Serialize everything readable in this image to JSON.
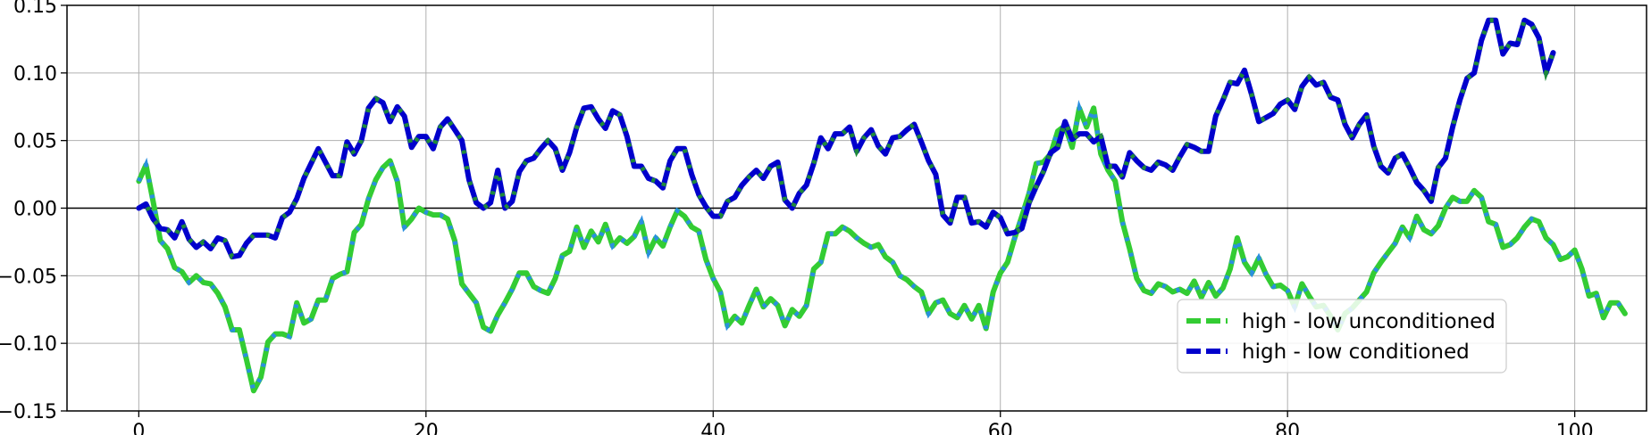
{
  "chart_data": {
    "type": "line",
    "title": "",
    "xlabel": "",
    "ylabel": "",
    "xlim": [
      -5,
      105
    ],
    "ylim": [
      -0.15,
      0.15
    ],
    "xticks": [
      0,
      20,
      40,
      60,
      80,
      100
    ],
    "yticks": [
      -0.15,
      -0.1,
      -0.05,
      0.0,
      0.05,
      0.1,
      0.15
    ],
    "xtick_labels": [
      "0",
      "20",
      "40",
      "60",
      "80",
      "100"
    ],
    "ytick_labels": [
      "−0.15",
      "−0.10",
      "−0.05",
      "0.00",
      "0.05",
      "0.10",
      "0.15"
    ],
    "grid": true,
    "zero_line": true,
    "legend_position": "lower-right",
    "x_step": 0.5,
    "series": [
      {
        "name": "high - low unconditioned",
        "color": "#33cc33",
        "dash_color": "#2a8fe0",
        "values": [
          0.02,
          0.032,
          0.005,
          -0.024,
          -0.03,
          -0.044,
          -0.047,
          -0.055,
          -0.05,
          -0.055,
          -0.056,
          -0.063,
          -0.073,
          -0.09,
          -0.09,
          -0.112,
          -0.135,
          -0.125,
          -0.099,
          -0.093,
          -0.093,
          -0.095,
          -0.07,
          -0.085,
          -0.082,
          -0.068,
          -0.068,
          -0.052,
          -0.049,
          -0.047,
          -0.018,
          -0.012,
          0.007,
          0.021,
          0.03,
          0.035,
          0.02,
          -0.014,
          -0.008,
          0.0,
          -0.003,
          -0.005,
          -0.005,
          -0.008,
          -0.024,
          -0.056,
          -0.063,
          -0.07,
          -0.088,
          -0.091,
          -0.079,
          -0.07,
          -0.06,
          -0.048,
          -0.048,
          -0.058,
          -0.061,
          -0.063,
          -0.052,
          -0.035,
          -0.032,
          -0.014,
          -0.029,
          -0.017,
          -0.025,
          -0.012,
          -0.028,
          -0.022,
          -0.026,
          -0.021,
          -0.01,
          -0.033,
          -0.022,
          -0.028,
          -0.014,
          -0.002,
          -0.006,
          -0.014,
          -0.017,
          -0.038,
          -0.052,
          -0.062,
          -0.087,
          -0.08,
          -0.085,
          -0.072,
          -0.06,
          -0.073,
          -0.067,
          -0.072,
          -0.087,
          -0.075,
          -0.08,
          -0.072,
          -0.045,
          -0.04,
          -0.019,
          -0.019,
          -0.014,
          -0.017,
          -0.022,
          -0.026,
          -0.029,
          -0.027,
          -0.036,
          -0.04,
          -0.05,
          -0.053,
          -0.058,
          -0.062,
          -0.078,
          -0.07,
          -0.068,
          -0.078,
          -0.081,
          -0.072,
          -0.082,
          -0.072,
          -0.089,
          -0.062,
          -0.048,
          -0.04,
          -0.022,
          -0.006,
          0.011,
          0.033,
          0.034,
          0.04,
          0.057,
          0.061,
          0.045,
          0.074,
          0.06,
          0.074,
          0.04,
          0.028,
          0.02,
          -0.01,
          -0.03,
          -0.052,
          -0.061,
          -0.063,
          -0.056,
          -0.058,
          -0.062,
          -0.06,
          -0.063,
          -0.054,
          -0.066,
          -0.055,
          -0.065,
          -0.059,
          -0.045,
          -0.022,
          -0.04,
          -0.048,
          -0.037,
          -0.049,
          -0.058,
          -0.057,
          -0.061,
          -0.073,
          -0.056,
          -0.065,
          -0.073,
          -0.072,
          -0.08,
          -0.09,
          -0.078,
          -0.074,
          -0.068,
          -0.062,
          -0.048,
          -0.04,
          -0.033,
          -0.026,
          -0.014,
          -0.022,
          -0.006,
          -0.016,
          -0.019,
          -0.013,
          -0.0,
          0.008,
          0.005,
          0.005,
          0.013,
          0.008,
          -0.01,
          -0.012,
          -0.029,
          -0.027,
          -0.022,
          -0.014,
          -0.008,
          -0.01,
          -0.022,
          -0.027,
          -0.038,
          -0.036,
          -0.031,
          -0.045,
          -0.065,
          -0.063,
          -0.081,
          -0.07,
          -0.07,
          -0.078
        ]
      },
      {
        "name": "high - low conditioned",
        "color": "#0000cc",
        "dash_color": "#1f8a3a",
        "values": [
          0.0,
          0.003,
          -0.008,
          -0.015,
          -0.016,
          -0.022,
          -0.01,
          -0.023,
          -0.029,
          -0.025,
          -0.03,
          -0.022,
          -0.024,
          -0.036,
          -0.035,
          -0.026,
          -0.02,
          -0.02,
          -0.02,
          -0.022,
          -0.007,
          -0.003,
          0.007,
          0.022,
          0.033,
          0.044,
          0.034,
          0.024,
          0.024,
          0.049,
          0.04,
          0.05,
          0.074,
          0.081,
          0.078,
          0.064,
          0.075,
          0.068,
          0.045,
          0.053,
          0.053,
          0.044,
          0.06,
          0.066,
          0.058,
          0.05,
          0.021,
          0.004,
          0.0,
          0.004,
          0.028,
          0.0,
          0.005,
          0.027,
          0.035,
          0.037,
          0.044,
          0.05,
          0.044,
          0.028,
          0.041,
          0.06,
          0.074,
          0.075,
          0.066,
          0.059,
          0.072,
          0.069,
          0.053,
          0.031,
          0.031,
          0.022,
          0.02,
          0.015,
          0.035,
          0.044,
          0.044,
          0.025,
          0.01,
          0.001,
          -0.006,
          -0.006,
          0.005,
          0.008,
          0.017,
          0.023,
          0.028,
          0.022,
          0.031,
          0.034,
          0.006,
          0.0,
          0.011,
          0.017,
          0.033,
          0.052,
          0.044,
          0.055,
          0.055,
          0.06,
          0.042,
          0.052,
          0.058,
          0.046,
          0.04,
          0.052,
          0.053,
          0.058,
          0.062,
          0.049,
          0.035,
          0.025,
          -0.005,
          -0.011,
          0.008,
          0.008,
          -0.011,
          -0.01,
          -0.014,
          -0.003,
          -0.007,
          -0.019,
          -0.018,
          -0.015,
          0.004,
          0.016,
          0.027,
          0.041,
          0.045,
          0.064,
          0.051,
          0.055,
          0.055,
          0.049,
          0.053,
          0.031,
          0.031,
          0.023,
          0.041,
          0.035,
          0.03,
          0.028,
          0.034,
          0.032,
          0.028,
          0.038,
          0.047,
          0.045,
          0.042,
          0.042,
          0.068,
          0.08,
          0.093,
          0.092,
          0.102,
          0.084,
          0.064,
          0.067,
          0.07,
          0.077,
          0.08,
          0.073,
          0.09,
          0.097,
          0.091,
          0.093,
          0.082,
          0.08,
          0.062,
          0.052,
          0.062,
          0.069,
          0.046,
          0.031,
          0.026,
          0.037,
          0.04,
          0.03,
          0.019,
          0.013,
          0.005,
          0.03,
          0.037,
          0.06,
          0.08,
          0.096,
          0.1,
          0.124,
          0.139,
          0.139,
          0.114,
          0.122,
          0.121,
          0.139,
          0.136,
          0.126,
          0.1,
          0.115
        ]
      }
    ]
  }
}
